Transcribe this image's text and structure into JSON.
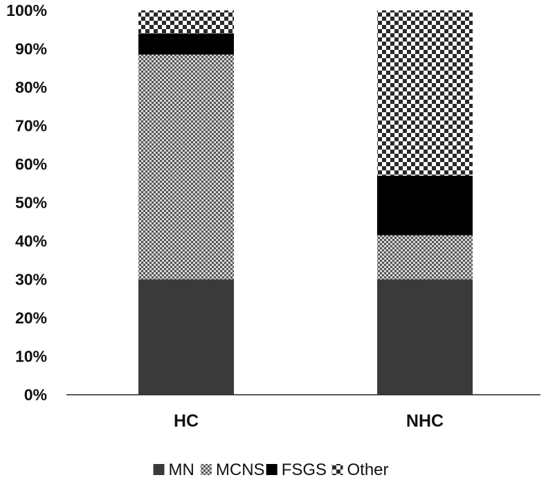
{
  "chart_data": {
    "type": "bar",
    "stacked": true,
    "categories": [
      "HC",
      "NHC"
    ],
    "series": [
      {
        "name": "MN",
        "values": [
          30,
          30
        ],
        "pattern": "solid-dark",
        "color": "#3a3a3a"
      },
      {
        "name": "MCNS",
        "values": [
          58.5,
          11.5
        ],
        "pattern": "fine-check",
        "color": "#9a9a9a"
      },
      {
        "name": "FSGS",
        "values": [
          5.5,
          15.5
        ],
        "pattern": "solid-black",
        "color": "#000000"
      },
      {
        "name": "Other",
        "values": [
          6,
          43
        ],
        "pattern": "coarse-check",
        "color": "#2a2a2a"
      }
    ],
    "y_ticks": [
      "0%",
      "10%",
      "20%",
      "30%",
      "40%",
      "50%",
      "60%",
      "70%",
      "80%",
      "90%",
      "100%"
    ],
    "ylim": [
      0,
      100
    ],
    "grid": false,
    "legend_position": "bottom"
  }
}
